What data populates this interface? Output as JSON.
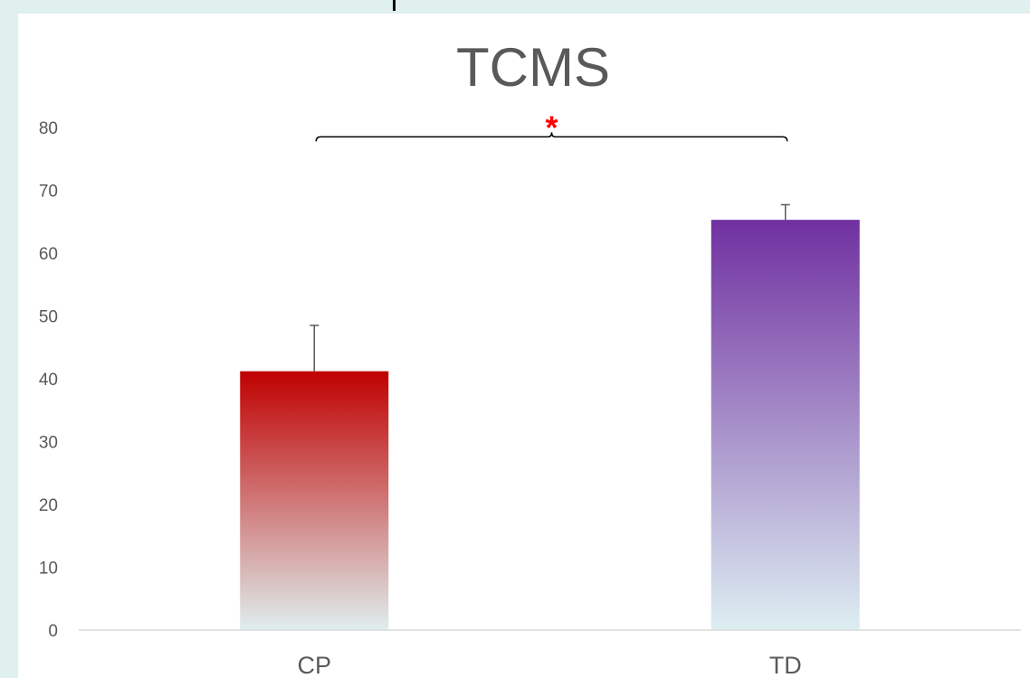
{
  "chart_data": {
    "type": "bar",
    "title": "TCMS",
    "categories": [
      "CP",
      "TD"
    ],
    "values": [
      41.2,
      65.3
    ],
    "error_plus": [
      7.3,
      2.4
    ],
    "ylim": [
      0,
      80
    ],
    "yticks": [
      0,
      10,
      20,
      30,
      40,
      50,
      60,
      70,
      80
    ],
    "ytick_labels": [
      "0",
      "10",
      "20",
      "30",
      "40",
      "50",
      "60",
      "70",
      "80"
    ],
    "xlabel": "",
    "ylabel": "",
    "grid": false,
    "legend": "none",
    "bar_colors": [
      {
        "top": "#c00000",
        "bottom": "#e0eeee"
      },
      {
        "top": "#7030a0",
        "bottom": "#ddeef2"
      }
    ],
    "significance": {
      "label": "*",
      "color": "#ff0000",
      "between": [
        "CP",
        "TD"
      ],
      "bracket_value": 78.5
    }
  },
  "colors": {
    "background": "#e0f0ef",
    "panel": "#ffffff",
    "text": "#595959",
    "axis": "#d9d9d9",
    "error_bar": "#595959",
    "bracket": "#000000"
  }
}
